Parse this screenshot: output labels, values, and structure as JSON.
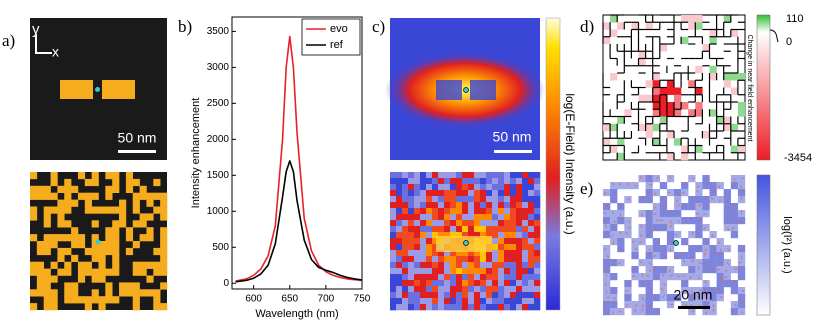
{
  "panel_labels": [
    "a)",
    "b)",
    "c)",
    "d)",
    "e)"
  ],
  "panel_a": {
    "axis_y": "y",
    "axis_x": "x",
    "scale_label": "50 nm"
  },
  "chart_data": {
    "type": "line",
    "x_label": "Wavelength (nm)",
    "y_label": "Intensity enhancement",
    "x": [
      575,
      590,
      600,
      610,
      620,
      630,
      640,
      645,
      650,
      655,
      660,
      670,
      680,
      690,
      700,
      710,
      720,
      730,
      740,
      750
    ],
    "series": [
      {
        "name": "evo",
        "color": "#e8202a",
        "values": [
          30,
          60,
          110,
          200,
          380,
          800,
          2000,
          3000,
          3430,
          3000,
          2100,
          900,
          450,
          250,
          160,
          110,
          80,
          60,
          50,
          40
        ]
      },
      {
        "name": "ref",
        "color": "#000000",
        "values": [
          20,
          40,
          70,
          130,
          250,
          550,
          1200,
          1550,
          1700,
          1550,
          1150,
          600,
          330,
          220,
          180,
          150,
          110,
          80,
          60,
          45
        ]
      }
    ],
    "xlim": [
      570,
      750
    ],
    "ylim": [
      -80,
      3700
    ],
    "xticks": [
      600,
      650,
      700,
      750
    ],
    "yticks": [
      0,
      500,
      1000,
      1500,
      2000,
      2500,
      3000,
      3500
    ],
    "legend": "top-right"
  },
  "panel_c": {
    "scale_label": "50 nm",
    "colorbar_label": "log(E-Field) Intensity (a.u.)"
  },
  "panel_d": {
    "colorbar_ticks": [
      110,
      0,
      -3454
    ],
    "colorbar_label": "Change in near field enhancement"
  },
  "panel_e": {
    "scale_label": "20 nm",
    "colorbar_label": "log(I²) (a.u.)"
  }
}
